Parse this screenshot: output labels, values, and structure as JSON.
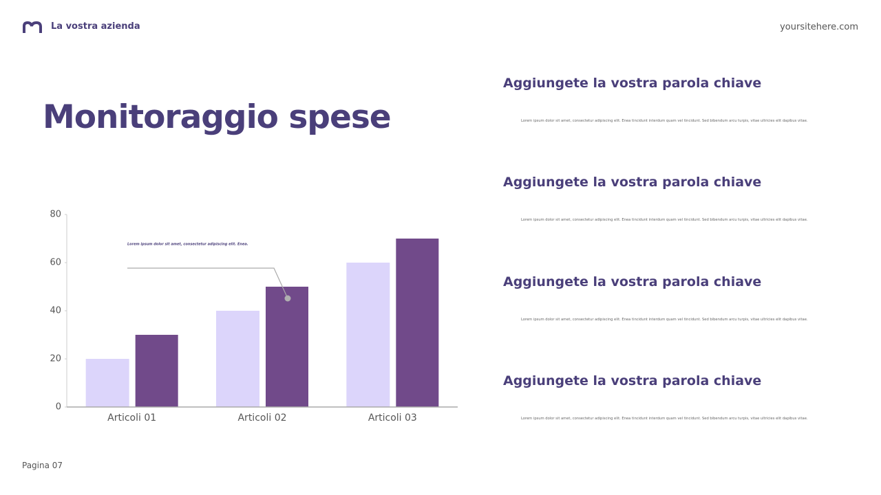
{
  "header": {
    "company": "La vostra azienda",
    "site": "yoursitehere.com"
  },
  "title": "Monitoraggio spese",
  "chart_data": {
    "type": "bar",
    "categories": [
      "Articoli 01",
      "Articoli 02",
      "Articoli 03"
    ],
    "series": [
      {
        "color": "#dcd5fb",
        "values": [
          20,
          40,
          60
        ]
      },
      {
        "color": "#714a8a",
        "values": [
          30,
          50,
          70
        ]
      }
    ],
    "ylim": [
      0,
      80
    ],
    "yticks": [
      0,
      20,
      40,
      60,
      80
    ],
    "annotation": "Lorem ipsum dolor sit amet, consectetur adipiscing elit. Enea."
  },
  "sections": [
    {
      "heading": "Aggiungete la vostra parola chiave",
      "body": "Lorem ipsum dolor sit amet, consectetur adipiscing elit. Enea tincidunt interdum quam vel tincidunt. Sed bibendum arcu turpis, vitae ultricies elit dapibus vitae."
    },
    {
      "heading": "Aggiungete la vostra parola chiave",
      "body": "Lorem ipsum dolor sit amet, consectetur adipiscing elit. Enea tincidunt interdum quam vel tincidunt. Sed bibendum arcu turpis, vitae ultricies elit dapibus vitae."
    },
    {
      "heading": "Aggiungete la vostra parola chiave",
      "body": "Lorem ipsum dolor sit amet, consectetur adipiscing elit. Enea tincidunt interdum quam vel tincidunt. Sed bibendum arcu turpis, vitae ultricies elit dapibus vitae."
    },
    {
      "heading": "Aggiungete la vostra parola chiave",
      "body": "Lorem ipsum dolor sit amet, consectetur adipiscing elit. Enea tincidunt interdum quam vel tincidunt. Sed bibendum arcu turpis, vitae ultricies elit dapibus vitae."
    }
  ],
  "footer": {
    "page": "Pagina 07"
  }
}
